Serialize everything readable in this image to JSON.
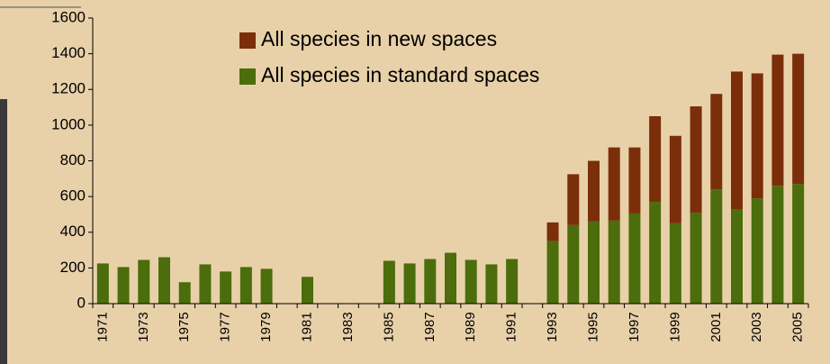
{
  "chart_data": {
    "type": "stacked_bar",
    "categories": [
      "1971",
      null,
      "1973",
      null,
      "1975",
      null,
      "1977",
      null,
      "1979",
      null,
      "1981",
      null,
      "1983",
      null,
      "1985",
      null,
      "1987",
      null,
      "1989",
      null,
      "1991",
      null,
      "1993",
      null,
      "1995",
      null,
      "1997",
      null,
      "1999",
      null,
      "2001",
      null,
      "2003",
      null,
      "2005"
    ],
    "series": [
      {
        "name": "All species in standard spaces",
        "color": "#4b6d0b",
        "values": [
          225,
          205,
          245,
          260,
          120,
          220,
          180,
          205,
          195,
          null,
          150,
          null,
          null,
          null,
          240,
          225,
          250,
          285,
          245,
          220,
          250,
          null,
          350,
          440,
          460,
          465,
          505,
          570,
          450,
          510,
          640,
          530,
          590,
          660,
          670
        ]
      },
      {
        "name": "All species in new spaces",
        "color": "#7b2e0a",
        "values": [
          0,
          0,
          0,
          0,
          0,
          0,
          0,
          0,
          0,
          null,
          0,
          null,
          null,
          null,
          0,
          0,
          0,
          0,
          0,
          0,
          0,
          null,
          105,
          285,
          340,
          410,
          370,
          480,
          490,
          595,
          535,
          770,
          700,
          735,
          730
        ]
      }
    ],
    "ylim": [
      0,
      1600
    ],
    "yticks": [
      0,
      200,
      400,
      600,
      800,
      1000,
      1200,
      1400,
      1600
    ],
    "legend": "top"
  }
}
